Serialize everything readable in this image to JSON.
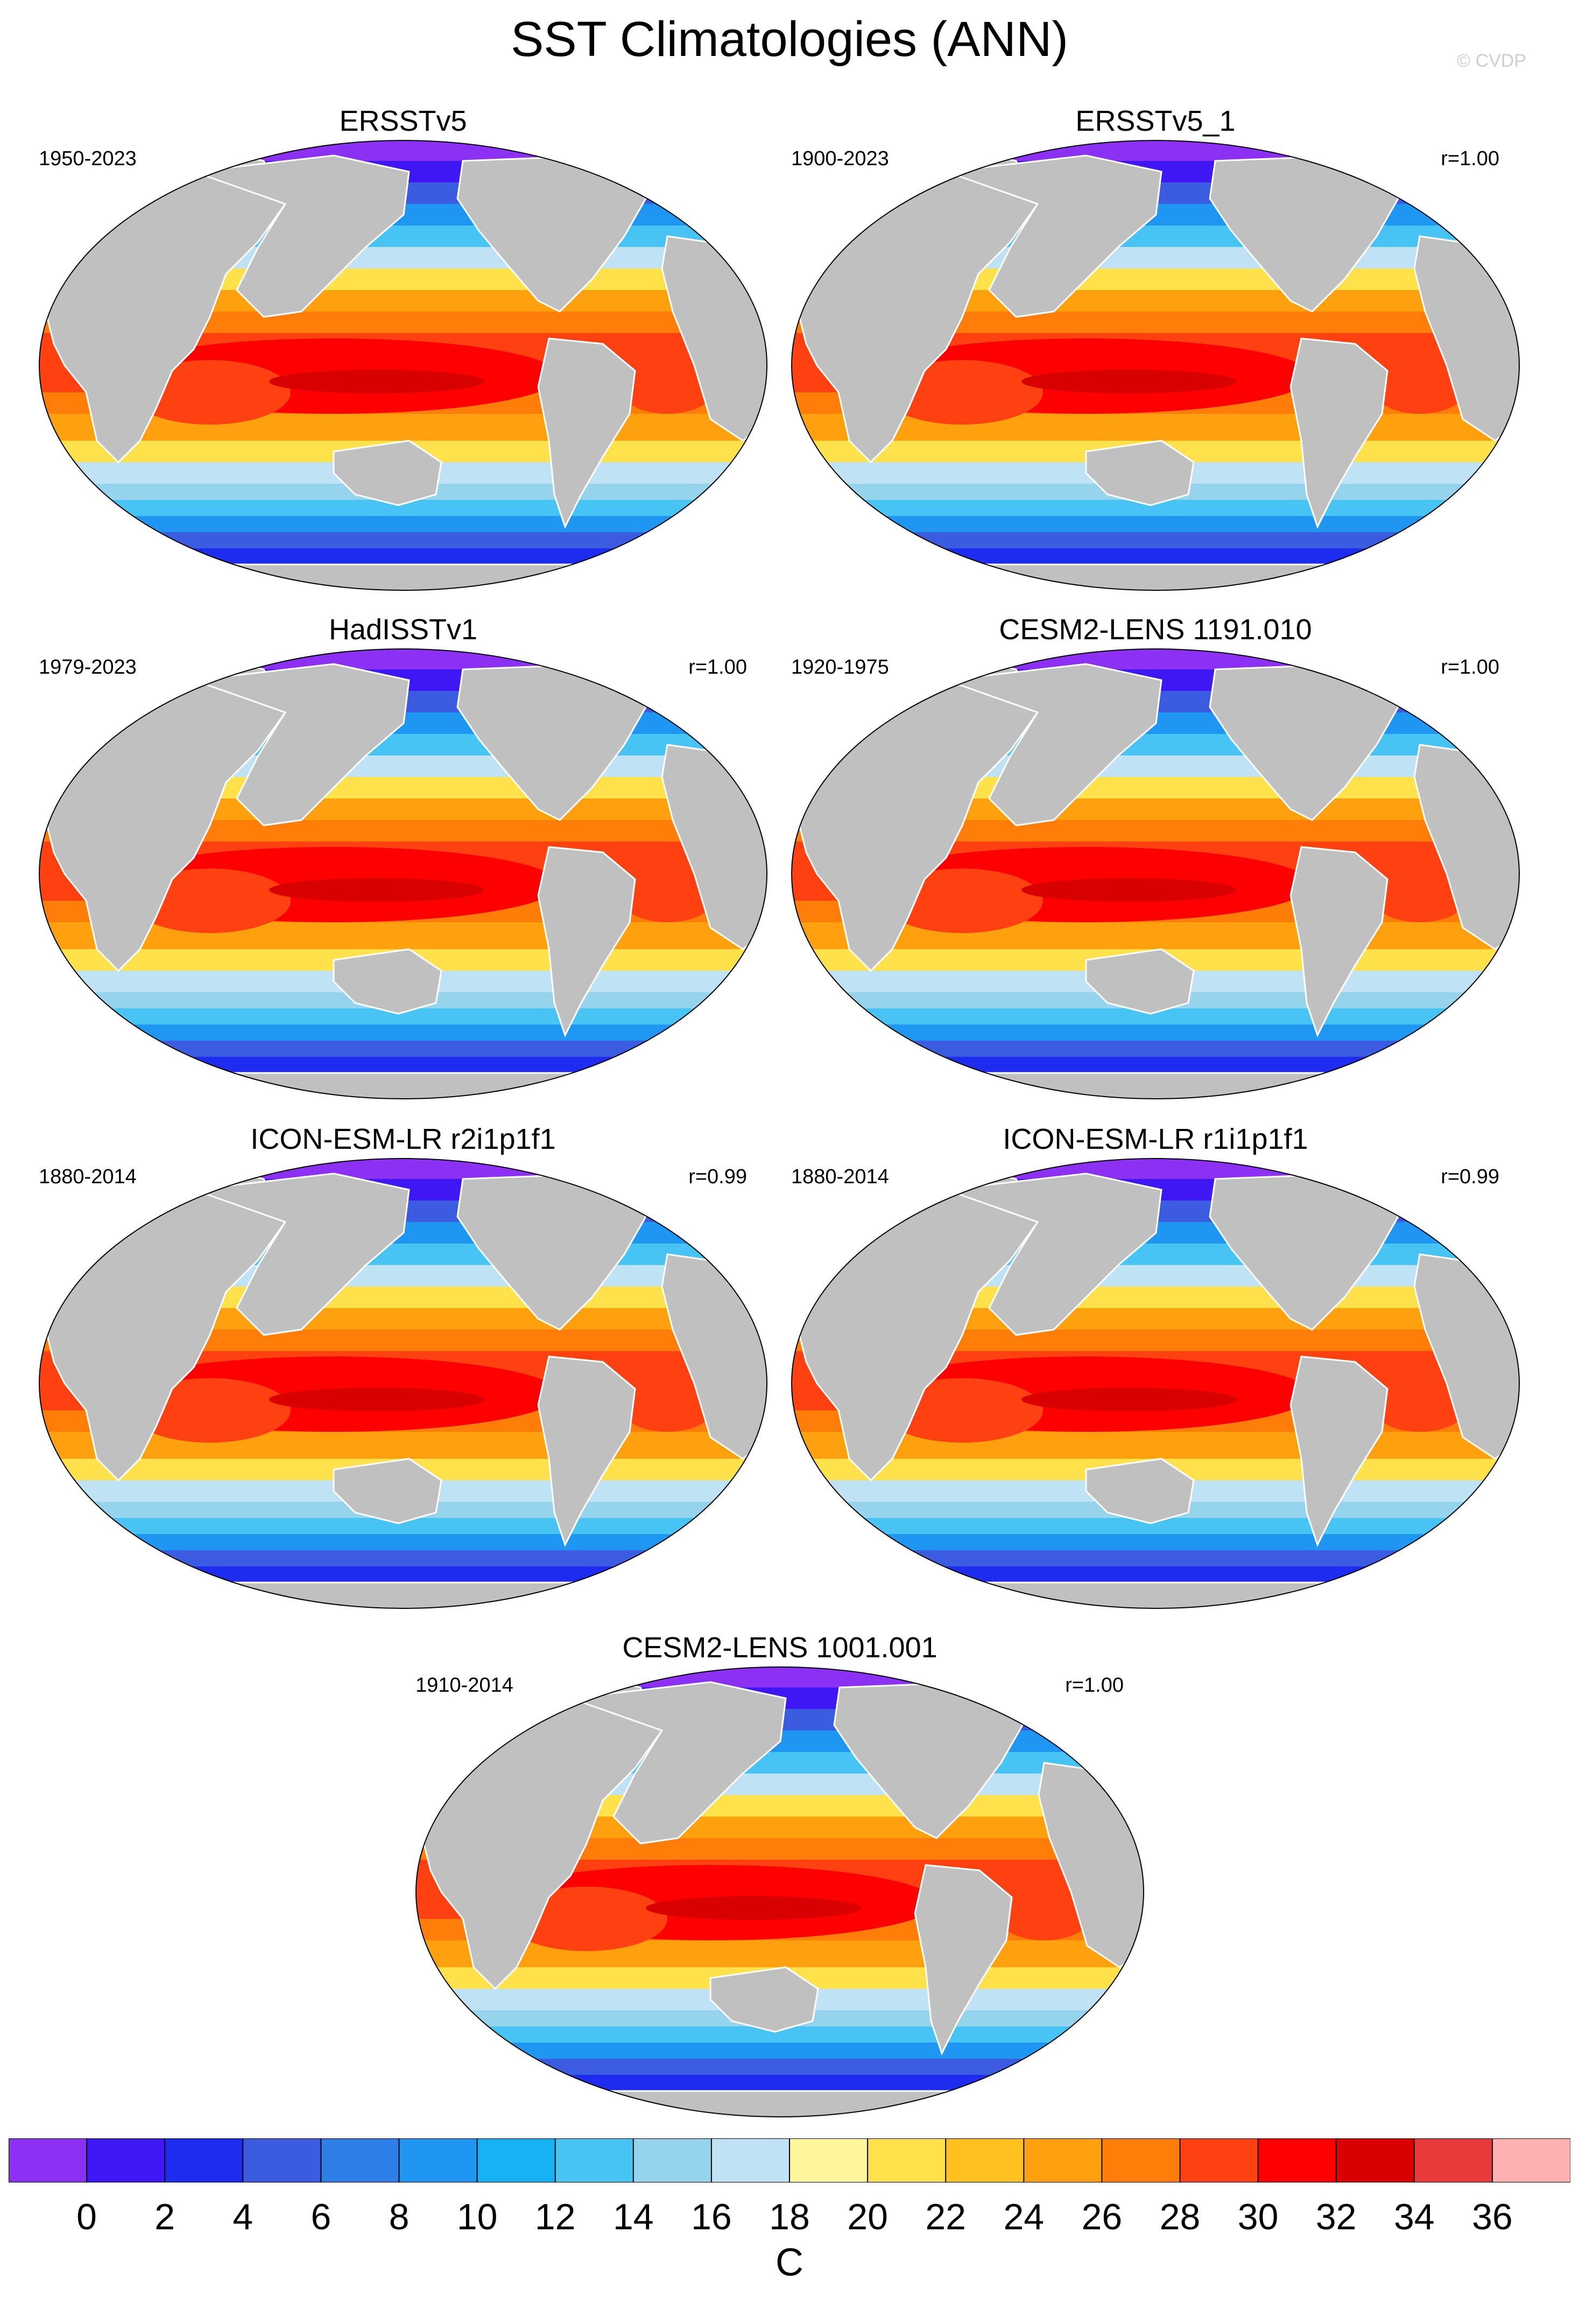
{
  "figure": {
    "title": "SST Climatologies (ANN)",
    "watermark": "© CVDP"
  },
  "panels": [
    {
      "title": "ERSSTv5",
      "period": "1950-2023",
      "corr": ""
    },
    {
      "title": "ERSSTv5_1",
      "period": "1900-2023",
      "corr": "r=1.00"
    },
    {
      "title": "HadISSTv1",
      "period": "1979-2023",
      "corr": "r=1.00"
    },
    {
      "title": "CESM2-LENS 1191.010",
      "period": "1920-1975",
      "corr": "r=1.00"
    },
    {
      "title": "ICON-ESM-LR r2i1p1f1",
      "period": "1880-2014",
      "corr": "r=0.99"
    },
    {
      "title": "ICON-ESM-LR r1i1p1f1",
      "period": "1880-2014",
      "corr": "r=0.99"
    },
    {
      "title": "CESM2-LENS 1001.001",
      "period": "1910-2014",
      "corr": "r=1.00"
    }
  ],
  "colorbar": {
    "units": "C",
    "tick_labels": [
      "0",
      "2",
      "4",
      "6",
      "8",
      "10",
      "12",
      "14",
      "16",
      "18",
      "20",
      "22",
      "24",
      "26",
      "28",
      "30",
      "32",
      "34",
      "36"
    ],
    "colors": [
      "#8c30f4",
      "#3f17f4",
      "#1d2cee",
      "#3b5ce0",
      "#2f7fe8",
      "#1e96f2",
      "#16b2f4",
      "#47c4f4",
      "#95d4ec",
      "#bfe2f4",
      "#fff59a",
      "#ffe24b",
      "#ffc020",
      "#ffa00e",
      "#ff7d08",
      "#ff4010",
      "#ff0000",
      "#d80000",
      "#e83a3a",
      "#ffb0b0"
    ],
    "land_color": "#c0c0c0"
  }
}
